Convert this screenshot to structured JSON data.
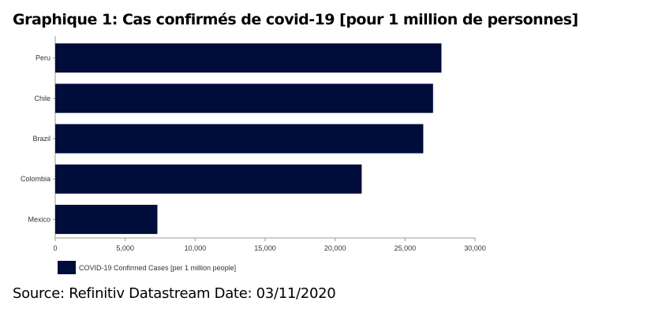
{
  "title": "Graphique 1: Cas confirmés de covid-19 [pour 1 million de personnes]",
  "source": "Source: Refinitiv Datastream Date: 03/11/2020",
  "chart_data": {
    "type": "bar",
    "orientation": "horizontal",
    "categories": [
      "Peru",
      "Chile",
      "Brazil",
      "Colombia",
      "Mexico"
    ],
    "series": [
      {
        "name": "COVID-19 Confirmed Cases [per 1 million people]",
        "values": [
          27600,
          27000,
          26300,
          21900,
          7300
        ],
        "color": "#000c3a"
      }
    ],
    "xlim": [
      0,
      30000
    ],
    "xticks": [
      0,
      5000,
      10000,
      15000,
      20000,
      25000,
      30000
    ],
    "xtick_labels": [
      "0",
      "5,000",
      "10,000",
      "15,000",
      "20,000",
      "25,000",
      "30,000"
    ],
    "grid": false,
    "legend": "bottom-left"
  }
}
